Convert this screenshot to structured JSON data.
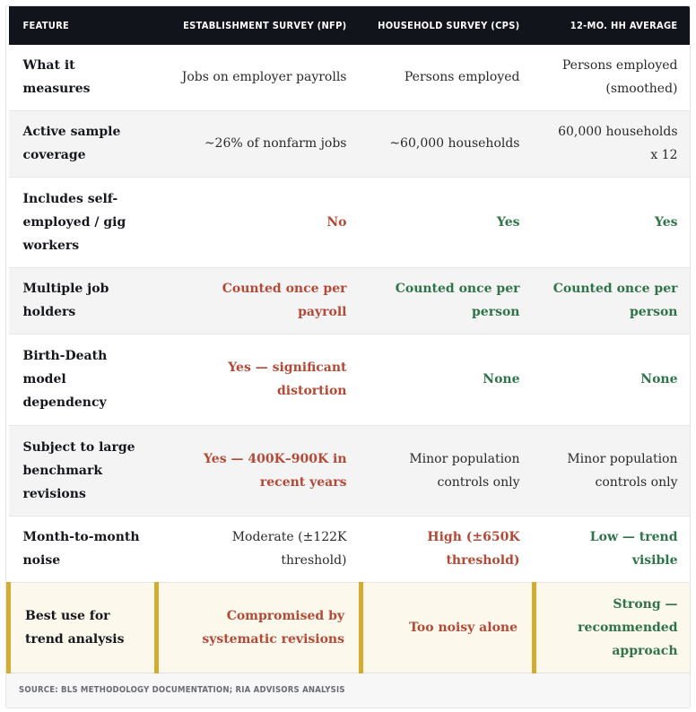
{
  "table": {
    "headers": [
      "Feature",
      "Establishment Survey (NFP)",
      "Household Survey (CPS)",
      "12-Mo. HH Average"
    ],
    "rows": [
      {
        "feature": "What it measures",
        "nfp": {
          "text": "Jobs on employer payrolls",
          "tone": "neutral"
        },
        "cps": {
          "text": "Persons employed",
          "tone": "neutral"
        },
        "avg": {
          "text": "Persons employed (smoothed)",
          "tone": "neutral"
        }
      },
      {
        "feature": "Active sample coverage",
        "nfp": {
          "text": "~26% of nonfarm jobs",
          "tone": "neutral"
        },
        "cps": {
          "text": "~60,000 households",
          "tone": "neutral"
        },
        "avg": {
          "text": "60,000 households x 12",
          "tone": "neutral"
        }
      },
      {
        "feature": "Includes self-employed / gig workers",
        "nfp": {
          "text": "No",
          "tone": "negative"
        },
        "cps": {
          "text": "Yes",
          "tone": "positive"
        },
        "avg": {
          "text": "Yes",
          "tone": "positive"
        }
      },
      {
        "feature": "Multiple job holders",
        "nfp": {
          "text": "Counted once per payroll",
          "tone": "negative"
        },
        "cps": {
          "text": "Counted once per person",
          "tone": "positive"
        },
        "avg": {
          "text": "Counted once per person",
          "tone": "positive"
        }
      },
      {
        "feature": "Birth-Death model dependency",
        "nfp": {
          "text": "Yes — significant distortion",
          "tone": "negative"
        },
        "cps": {
          "text": "None",
          "tone": "positive"
        },
        "avg": {
          "text": "None",
          "tone": "positive"
        }
      },
      {
        "feature": "Subject to large benchmark revisions",
        "nfp": {
          "text": "Yes — 400K–900K in recent years",
          "tone": "negative"
        },
        "cps": {
          "text": "Minor population controls only",
          "tone": "neutral"
        },
        "avg": {
          "text": "Minor population controls only",
          "tone": "neutral"
        }
      },
      {
        "feature": "Month-to-month noise",
        "nfp": {
          "text": "Moderate (±122K threshold)",
          "tone": "neutral"
        },
        "cps": {
          "text": "High (±650K threshold)",
          "tone": "negative"
        },
        "avg": {
          "text": "Low — trend visible",
          "tone": "positive"
        }
      },
      {
        "feature": "Best use for trend analysis",
        "nfp": {
          "text": "Compromised by systematic revisions",
          "tone": "negative"
        },
        "cps": {
          "text": "Too noisy alone",
          "tone": "negative"
        },
        "avg": {
          "text": "Strong — recommended approach",
          "tone": "positive"
        },
        "highlighted": true
      }
    ]
  },
  "source": "Source: BLS Methodology Documentation; RIA Advisors Analysis",
  "colors": {
    "header_bg": "#11141b",
    "negative": "#b24a37",
    "positive": "#2f7349",
    "highlight_bg": "#fcf8ec",
    "highlight_border": "#d2ad32",
    "alt_row_bg": "#f4f4f4"
  }
}
